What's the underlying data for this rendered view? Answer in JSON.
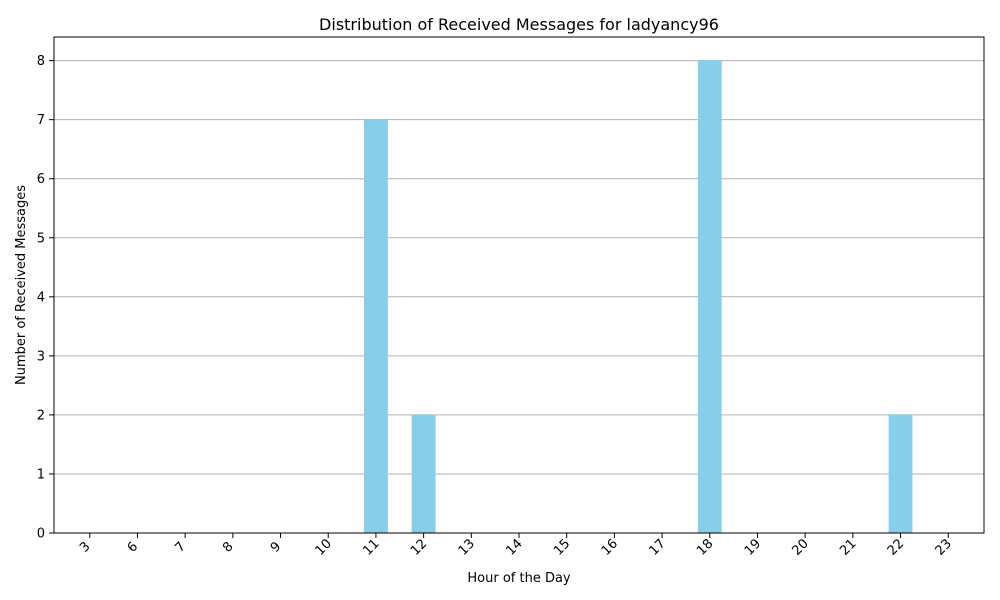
{
  "chart_data": {
    "type": "bar",
    "title": "Distribution of Received Messages for ladyancy96",
    "xlabel": "Hour of the Day",
    "ylabel": "Number of Received Messages",
    "categories": [
      "3",
      "6",
      "7",
      "8",
      "9",
      "10",
      "11",
      "12",
      "13",
      "14",
      "15",
      "16",
      "17",
      "18",
      "19",
      "20",
      "21",
      "22",
      "23"
    ],
    "values": [
      0,
      0,
      0,
      0,
      0,
      0,
      7,
      2,
      0,
      0,
      0,
      0,
      0,
      8,
      0,
      0,
      0,
      2,
      0
    ],
    "ylim": [
      0,
      8.4
    ],
    "yticks": [
      0,
      1,
      2,
      3,
      4,
      5,
      6,
      7,
      8
    ],
    "grid": "y-axis horizontal lines",
    "legend": "none",
    "bar_color": "#87CEEB",
    "grid_color": "#b0b0b0",
    "axis_color": "#000000"
  }
}
